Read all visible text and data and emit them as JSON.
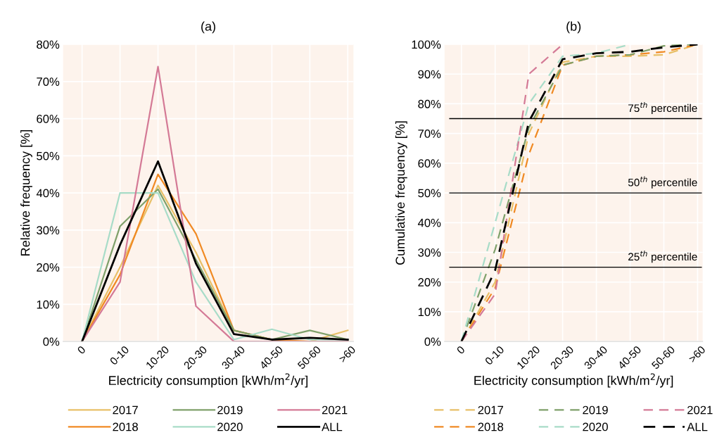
{
  "chart_data": [
    {
      "type": "line",
      "title": "(a)",
      "xlabel": "Electricity consumption [kWh/m$^{2}$/yr]",
      "ylabel": "Relative frequency [%]",
      "categories": [
        "0",
        "0-10",
        "10-20",
        "20-30",
        "30-40",
        "40-50",
        "50-60",
        ">60"
      ],
      "series": [
        {
          "name": "2017",
          "color": "#e8c068",
          "values": [
            0,
            20,
            42,
            24,
            3,
            0.5,
            0,
            3
          ]
        },
        {
          "name": "2018",
          "color": "#f08a24",
          "values": [
            0,
            18,
            45,
            29,
            3,
            0.5,
            0,
            0
          ]
        },
        {
          "name": "2019",
          "color": "#7fa06a",
          "values": [
            0,
            31,
            41,
            22,
            3,
            0.5,
            3,
            0.5
          ]
        },
        {
          "name": "2020",
          "color": "#a8dcc8",
          "values": [
            0,
            40,
            40,
            16,
            0.5,
            3.3,
            0.5,
            0.5
          ]
        },
        {
          "name": "2021",
          "color": "#d47a96",
          "values": [
            0,
            16,
            74,
            9.5,
            0,
            0,
            0,
            0
          ]
        },
        {
          "name": "ALL",
          "color": "#000000",
          "values": [
            0,
            26,
            48.5,
            21,
            2,
            0.5,
            1,
            0.5
          ]
        }
      ],
      "ylim": [
        0,
        80
      ],
      "yticks": [
        {
          "value": 0,
          "label": "0%"
        },
        {
          "value": 10,
          "label": "10%"
        },
        {
          "value": 20,
          "label": "20%"
        },
        {
          "value": 30,
          "label": "30%"
        },
        {
          "value": 40,
          "label": "40%"
        },
        {
          "value": 50,
          "label": "50%"
        },
        {
          "value": 60,
          "label": "60%"
        },
        {
          "value": 70,
          "label": "70%"
        },
        {
          "value": 80,
          "label": "80%"
        }
      ],
      "grid": true,
      "legend": "bottom",
      "line_style": "solid"
    },
    {
      "type": "line",
      "title": "(b)",
      "xlabel": "Electricity consumption [kWh/m$^{2}$/yr]",
      "ylabel": "Cumulative frequency [%]",
      "categories": [
        "0",
        "0-10",
        "10-20",
        "20-30",
        "30-40",
        "40-50",
        "50-60",
        ">60"
      ],
      "series": [
        {
          "name": "2017",
          "color": "#e8c068",
          "values": [
            0,
            20,
            70,
            94,
            96,
            96,
            96.5,
            100
          ]
        },
        {
          "name": "2018",
          "color": "#f08a24",
          "values": [
            0,
            18,
            63,
            93,
            96,
            96.5,
            97.5,
            100
          ]
        },
        {
          "name": "2019",
          "color": "#7fa06a",
          "values": [
            0,
            31,
            72,
            93,
            96,
            96.5,
            99.5,
            100
          ]
        },
        {
          "name": "2020",
          "color": "#a8dcc8",
          "values": [
            0,
            40,
            80,
            96,
            97,
            100,
            null,
            null
          ]
        },
        {
          "name": "2021",
          "color": "#d47a96",
          "values": [
            0,
            16,
            90,
            100,
            null,
            null,
            null,
            null
          ]
        },
        {
          "name": "ALL",
          "color": "#000000",
          "values": [
            0,
            24,
            74,
            95,
            97,
            97.5,
            99,
            100
          ]
        }
      ],
      "ylim": [
        0,
        100
      ],
      "yticks": [
        {
          "value": 0,
          "label": "0%"
        },
        {
          "value": 10,
          "label": "10%"
        },
        {
          "value": 20,
          "label": "20%"
        },
        {
          "value": 30,
          "label": "30%"
        },
        {
          "value": 40,
          "label": "40%"
        },
        {
          "value": 50,
          "label": "50%"
        },
        {
          "value": 60,
          "label": "60%"
        },
        {
          "value": 70,
          "label": "70%"
        },
        {
          "value": 80,
          "label": "80%"
        },
        {
          "value": 90,
          "label": "90%"
        },
        {
          "value": 100,
          "label": "100%"
        }
      ],
      "ref_lines": [
        {
          "axis": "y",
          "value": 75,
          "label": "75$^{th}$ percentile",
          "color": "#000000"
        },
        {
          "axis": "y",
          "value": 50,
          "label": "50$^{th}$ percentile",
          "color": "#000000"
        },
        {
          "axis": "y",
          "value": 25,
          "label": "25$^{th}$ percentile",
          "color": "#000000"
        }
      ],
      "grid": true,
      "legend": "bottom",
      "line_style": "dashed"
    }
  ]
}
